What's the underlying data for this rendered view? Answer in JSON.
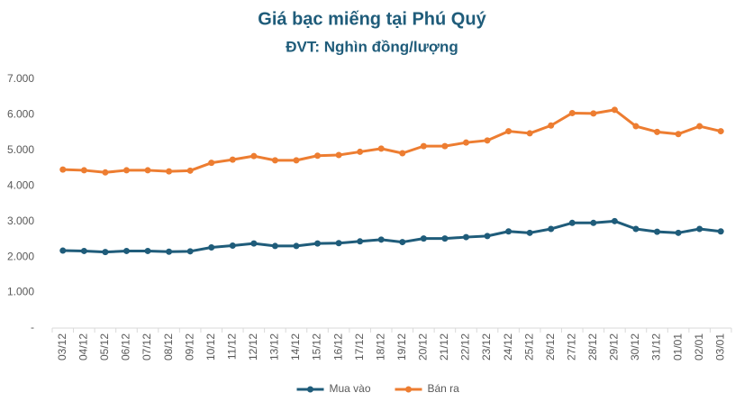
{
  "chart_data": {
    "type": "line",
    "title": "Giá bạc miếng tại Phú Quý",
    "subtitle": "ĐVT: Nghìn đồng/lượng",
    "categories": [
      "03/12",
      "04/12",
      "05/12",
      "06/12",
      "07/12",
      "08/12",
      "09/12",
      "10/12",
      "11/12",
      "12/12",
      "13/12",
      "14/12",
      "15/12",
      "16/12",
      "17/12",
      "18/12",
      "19/12",
      "20/12",
      "21/12",
      "22/12",
      "23/12",
      "24/12",
      "25/12",
      "26/12",
      "27/12",
      "28/12",
      "29/12",
      "30/12",
      "31/12",
      "01/01",
      "02/01",
      "03/01"
    ],
    "series": [
      {
        "name": "Mua vào",
        "color": "#1f5c7a",
        "values": [
          2180,
          2170,
          2140,
          2170,
          2170,
          2150,
          2160,
          2270,
          2320,
          2380,
          2310,
          2310,
          2380,
          2390,
          2440,
          2490,
          2420,
          2520,
          2520,
          2560,
          2590,
          2720,
          2680,
          2790,
          2960,
          2960,
          3010,
          2790,
          2710,
          2680,
          2790,
          2720
        ]
      },
      {
        "name": "Bán ra",
        "color": "#ed7d31",
        "values": [
          4460,
          4440,
          4380,
          4440,
          4440,
          4410,
          4430,
          4650,
          4740,
          4840,
          4720,
          4720,
          4850,
          4870,
          4960,
          5050,
          4920,
          5120,
          5120,
          5220,
          5280,
          5540,
          5480,
          5700,
          6050,
          6040,
          6140,
          5680,
          5520,
          5460,
          5680,
          5540
        ]
      }
    ],
    "ylim": [
      0,
      7000
    ],
    "yticks": [
      {
        "value": 0,
        "label": "-"
      },
      {
        "value": 1000,
        "label": "1.000"
      },
      {
        "value": 2000,
        "label": "2.000"
      },
      {
        "value": 3000,
        "label": "3.000"
      },
      {
        "value": 4000,
        "label": "4.000"
      },
      {
        "value": 5000,
        "label": "5.000"
      },
      {
        "value": 6000,
        "label": "6.000"
      },
      {
        "value": 7000,
        "label": "7.000"
      }
    ],
    "grid": false,
    "legend": "bottom"
  }
}
